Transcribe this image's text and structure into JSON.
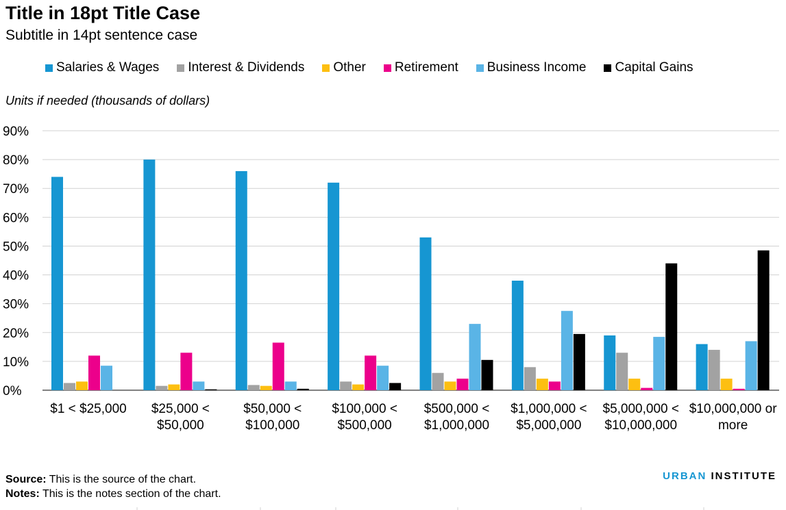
{
  "title": "Title in 18pt Title Case",
  "subtitle": "Subtitle in 14pt sentence case",
  "units": "Units if needed (thousands of dollars)",
  "source_label": "Source:",
  "source_text": " This is the source of the chart.",
  "notes_label": "Notes:",
  "notes_text": " This is the notes section of the chart.",
  "brand": {
    "part1": "URBAN",
    "part2": " INSTITUTE"
  },
  "colors": {
    "Salaries & Wages": "#1696d2",
    "Interest & Dividends": "#a2a2a2",
    "Other": "#fdbf11",
    "Retirement": "#ec008b",
    "Business Income": "#5ab4e6",
    "Capital Gains": "#000000"
  },
  "chart_data": {
    "type": "bar",
    "categories": [
      [
        "$1 < $25,000"
      ],
      [
        "$25,000 <",
        "$50,000"
      ],
      [
        "$50,000 <",
        "$100,000"
      ],
      [
        "$100,000 <",
        "$500,000"
      ],
      [
        "$500,000 <",
        "$1,000,000"
      ],
      [
        "$1,000,000 <",
        "$5,000,000"
      ],
      [
        "$5,000,000 <",
        "$10,000,000"
      ],
      [
        "$10,000,000 or",
        "more"
      ]
    ],
    "series": [
      {
        "name": "Salaries & Wages",
        "values": [
          74,
          80,
          76,
          72,
          53,
          38,
          19,
          16
        ]
      },
      {
        "name": "Interest & Dividends",
        "values": [
          2.5,
          1.5,
          1.8,
          3,
          6,
          8,
          13,
          14
        ]
      },
      {
        "name": "Other",
        "values": [
          3,
          2,
          1.5,
          2,
          3,
          4,
          4,
          4
        ]
      },
      {
        "name": "Retirement",
        "values": [
          12,
          13,
          16.5,
          12,
          4,
          3,
          0.8,
          0.5
        ]
      },
      {
        "name": "Business Income",
        "values": [
          8.5,
          3,
          3,
          8.5,
          23,
          27.5,
          18.5,
          17
        ]
      },
      {
        "name": "Capital Gains",
        "values": [
          0,
          0.3,
          0.5,
          2.5,
          10.5,
          19.5,
          44,
          48.5
        ]
      }
    ],
    "ylim": [
      0,
      90
    ],
    "yticks": [
      "0%",
      "10%",
      "20%",
      "30%",
      "40%",
      "50%",
      "60%",
      "70%",
      "80%",
      "90%"
    ],
    "grid": true,
    "legend": "top"
  }
}
